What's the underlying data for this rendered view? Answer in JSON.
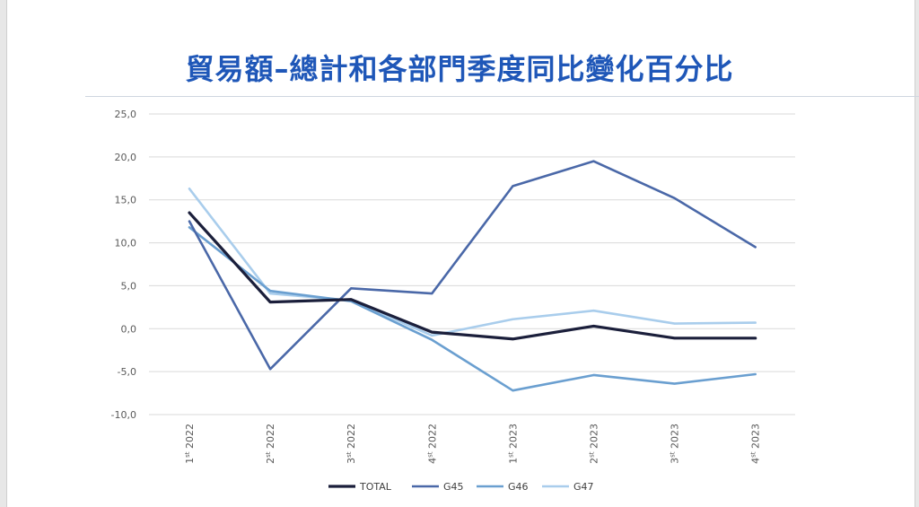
{
  "page": {
    "title": "貿易額–總計和各部門季度同比變化百分比"
  },
  "chart_data": {
    "type": "line",
    "title": "貿易額–總計和各部門季度同比變化百分比",
    "xlabel": "",
    "ylabel": "",
    "ylim": [
      -10,
      25
    ],
    "yticks": [
      25,
      20,
      15,
      10,
      5,
      0,
      -5,
      -10
    ],
    "ytick_labels": [
      "25,0",
      "20,0",
      "15,0",
      "10,0",
      "5,0",
      "0,0",
      "-5,0",
      "-10,0"
    ],
    "categories": [
      {
        "q": "1",
        "sup": "st",
        "year": "2022"
      },
      {
        "q": "2",
        "sup": "st",
        "year": "2022"
      },
      {
        "q": "3",
        "sup": "st",
        "year": "2022"
      },
      {
        "q": "4",
        "sup": "st",
        "year": "2022"
      },
      {
        "q": "1",
        "sup": "st",
        "year": "2023"
      },
      {
        "q": "2",
        "sup": "st",
        "year": "2023"
      },
      {
        "q": "3",
        "sup": "st",
        "year": "2023"
      },
      {
        "q": "4",
        "sup": "st",
        "year": "2023"
      }
    ],
    "grid": "horizontal",
    "legend_position": "bottom",
    "series": [
      {
        "name": "TOTAL",
        "color": "#1b1f3b",
        "values": [
          13.5,
          3.1,
          3.4,
          -0.4,
          -1.2,
          0.3,
          -1.1,
          -1.1
        ]
      },
      {
        "name": "G45",
        "color": "#4a68a8",
        "values": [
          12.5,
          -4.7,
          4.7,
          4.1,
          16.6,
          19.5,
          15.2,
          9.5
        ]
      },
      {
        "name": "G46",
        "color": "#6a9fd0",
        "values": [
          11.8,
          4.4,
          3.2,
          -1.3,
          -7.2,
          -5.4,
          -6.4,
          -5.3
        ]
      },
      {
        "name": "G47",
        "color": "#a9cdec",
        "values": [
          16.3,
          4.1,
          3.3,
          -0.8,
          1.1,
          2.1,
          0.6,
          0.7
        ]
      }
    ]
  }
}
